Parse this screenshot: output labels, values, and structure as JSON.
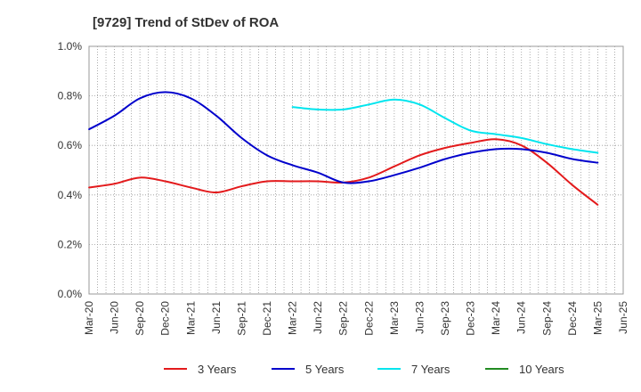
{
  "chart_data": {
    "type": "line",
    "title": "[9729]  Trend of StDev of ROA",
    "xlabel": "",
    "ylabel": "",
    "x": [
      "Mar-20",
      "Jun-20",
      "Sep-20",
      "Dec-20",
      "Mar-21",
      "Jun-21",
      "Sep-21",
      "Dec-21",
      "Mar-22",
      "Jun-22",
      "Sep-22",
      "Dec-22",
      "Mar-23",
      "Jun-23",
      "Sep-23",
      "Dec-23",
      "Mar-24",
      "Jun-24",
      "Sep-24",
      "Dec-24",
      "Mar-25",
      "Jun-25"
    ],
    "ylim": [
      0,
      1.0
    ],
    "yticks": [
      0,
      0.2,
      0.4,
      0.6,
      0.8,
      1.0
    ],
    "ytick_labels": [
      "0.0%",
      "0.2%",
      "0.4%",
      "0.6%",
      "0.8%",
      "1.0%"
    ],
    "grid": true,
    "legend_position": "bottom",
    "series": [
      {
        "name": "3 Years",
        "color": "#e31a1c",
        "values": [
          0.43,
          0.445,
          0.47,
          0.455,
          0.43,
          0.41,
          0.435,
          0.455,
          0.455,
          0.455,
          0.45,
          0.47,
          0.515,
          0.56,
          0.59,
          0.61,
          0.625,
          0.6,
          0.53,
          0.44,
          0.36,
          null
        ]
      },
      {
        "name": "5 Years",
        "color": "#0000cc",
        "values": [
          0.665,
          0.72,
          0.79,
          0.815,
          0.79,
          0.72,
          0.63,
          0.56,
          0.52,
          0.49,
          0.45,
          0.455,
          0.48,
          0.51,
          0.545,
          0.57,
          0.585,
          0.585,
          0.57,
          0.545,
          0.53,
          null
        ]
      },
      {
        "name": "7 Years",
        "color": "#00e5ee",
        "values": [
          null,
          null,
          null,
          null,
          null,
          null,
          null,
          null,
          0.755,
          0.745,
          0.745,
          0.765,
          0.785,
          0.765,
          0.71,
          0.66,
          0.645,
          0.63,
          0.605,
          0.585,
          0.57,
          null
        ]
      },
      {
        "name": "10 Years",
        "color": "#228b22",
        "values": [
          null,
          null,
          null,
          null,
          null,
          null,
          null,
          null,
          null,
          null,
          null,
          null,
          null,
          null,
          null,
          null,
          null,
          null,
          null,
          null,
          null,
          null
        ]
      }
    ]
  }
}
